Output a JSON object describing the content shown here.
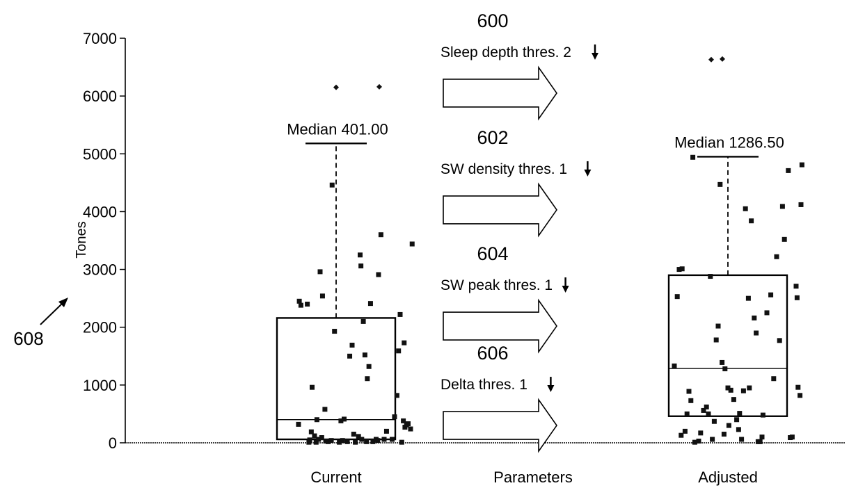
{
  "chart_data": {
    "type": "box",
    "ylabel": "Tones",
    "ylim": [
      0,
      7000
    ],
    "yticks": [
      0,
      1000,
      2000,
      3000,
      4000,
      5000,
      6000,
      7000
    ],
    "categories": [
      "Current",
      "Parameters",
      "Adjusted"
    ],
    "grid": false,
    "figure_ref": "608",
    "boxes": [
      {
        "category": "Current",
        "median": 401.0,
        "q1": 60,
        "q3": 2160,
        "whisker_high": 5180,
        "median_label": "Median 401.00",
        "points": [
          [
            -0.46,
            2450
          ],
          [
            -0.44,
            2380
          ],
          [
            -0.36,
            2400
          ],
          [
            -0.3,
            960
          ],
          [
            -0.33,
            50
          ],
          [
            -0.34,
            10
          ],
          [
            -0.27,
            120
          ],
          [
            -0.24,
            400
          ],
          [
            -0.2,
            2960
          ],
          [
            -0.17,
            2540
          ],
          [
            -0.14,
            580
          ],
          [
            -0.1,
            20
          ],
          [
            -0.06,
            40
          ],
          [
            -0.02,
            1930
          ],
          [
            0.06,
            380
          ],
          [
            0.1,
            410
          ],
          [
            -0.31,
            190
          ],
          [
            -0.25,
            10
          ],
          [
            -0.22,
            60
          ],
          [
            -0.18,
            90
          ],
          [
            -0.13,
            30
          ],
          [
            0.04,
            10
          ],
          [
            0.08,
            40
          ],
          [
            -0.05,
            4460
          ],
          [
            0.14,
            20
          ],
          [
            0.17,
            1500
          ],
          [
            0.2,
            1690
          ],
          [
            0.24,
            10
          ],
          [
            0.3,
            3250
          ],
          [
            0.31,
            3060
          ],
          [
            0.34,
            2100
          ],
          [
            0.36,
            1520
          ],
          [
            0.38,
            20
          ],
          [
            0.41,
            1320
          ],
          [
            0.43,
            2410
          ],
          [
            0.46,
            20
          ],
          [
            0.5,
            60
          ],
          [
            0.52,
            40
          ],
          [
            0.53,
            2910
          ],
          [
            0.56,
            3600
          ],
          [
            0.6,
            60
          ],
          [
            0.63,
            200
          ],
          [
            0.7,
            60
          ],
          [
            0.73,
            450
          ],
          [
            0.76,
            820
          ],
          [
            0.78,
            1590
          ],
          [
            0.8,
            2220
          ],
          [
            0.82,
            10
          ],
          [
            0.84,
            380
          ],
          [
            0.85,
            1730
          ],
          [
            0.86,
            270
          ],
          [
            0.88,
            310
          ],
          [
            0.9,
            330
          ],
          [
            0.93,
            240
          ],
          [
            0.95,
            3440
          ],
          [
            -0.47,
            320
          ],
          [
            0.22,
            150
          ],
          [
            0.28,
            110
          ],
          [
            0.32,
            60
          ],
          [
            0.39,
            1110
          ]
        ],
        "outliers": [
          6150,
          6160
        ]
      },
      {
        "category": "Adjusted",
        "median": 1286.5,
        "q1": 460,
        "q3": 2900,
        "whisker_high": 4950,
        "median_label": "Median 1286.50",
        "points": [
          [
            -0.55,
            1330
          ],
          [
            -0.5,
            3000
          ],
          [
            -0.47,
            3010
          ],
          [
            -0.52,
            2530
          ],
          [
            -0.48,
            130
          ],
          [
            -0.44,
            200
          ],
          [
            -0.4,
            890
          ],
          [
            -0.38,
            730
          ],
          [
            -0.42,
            500
          ],
          [
            -0.36,
            4940
          ],
          [
            -0.34,
            10
          ],
          [
            -0.3,
            30
          ],
          [
            -0.28,
            170
          ],
          [
            -0.25,
            560
          ],
          [
            -0.22,
            620
          ],
          [
            -0.2,
            500
          ],
          [
            -0.18,
            2880
          ],
          [
            -0.16,
            60
          ],
          [
            -0.12,
            1780
          ],
          [
            -0.1,
            2020
          ],
          [
            -0.08,
            4470
          ],
          [
            -0.06,
            1390
          ],
          [
            -0.03,
            1280
          ],
          [
            0.0,
            950
          ],
          [
            0.03,
            910
          ],
          [
            0.06,
            750
          ],
          [
            0.09,
            400
          ],
          [
            0.11,
            230
          ],
          [
            0.14,
            60
          ],
          [
            0.16,
            900
          ],
          [
            0.18,
            4050
          ],
          [
            0.21,
            2500
          ],
          [
            0.24,
            3840
          ],
          [
            0.27,
            2160
          ],
          [
            0.29,
            1900
          ],
          [
            0.31,
            20
          ],
          [
            0.33,
            20
          ],
          [
            0.36,
            480
          ],
          [
            0.4,
            2250
          ],
          [
            0.44,
            2560
          ],
          [
            0.47,
            1110
          ],
          [
            0.5,
            3220
          ],
          [
            0.53,
            1770
          ],
          [
            0.56,
            4090
          ],
          [
            0.58,
            3520
          ],
          [
            0.62,
            4710
          ],
          [
            0.64,
            90
          ],
          [
            0.66,
            100
          ],
          [
            0.7,
            2710
          ],
          [
            0.71,
            2510
          ],
          [
            0.72,
            960
          ],
          [
            0.74,
            820
          ],
          [
            0.75,
            4120
          ],
          [
            0.76,
            4810
          ],
          [
            -0.04,
            150
          ],
          [
            0.01,
            300
          ],
          [
            0.12,
            510
          ],
          [
            0.22,
            950
          ],
          [
            -0.14,
            370
          ],
          [
            0.35,
            100
          ]
        ],
        "outliers": [
          6630,
          6640
        ]
      }
    ],
    "arrows": [
      {
        "ref": "600",
        "label": "Sleep depth thres. 2",
        "y": 6050
      },
      {
        "ref": "602",
        "label": "SW density thres. 1",
        "y": 4030
      },
      {
        "ref": "604",
        "label": "SW peak thres. 1",
        "y": 2020
      },
      {
        "ref": "606",
        "label": "Delta thres. 1",
        "y": 300
      }
    ]
  }
}
